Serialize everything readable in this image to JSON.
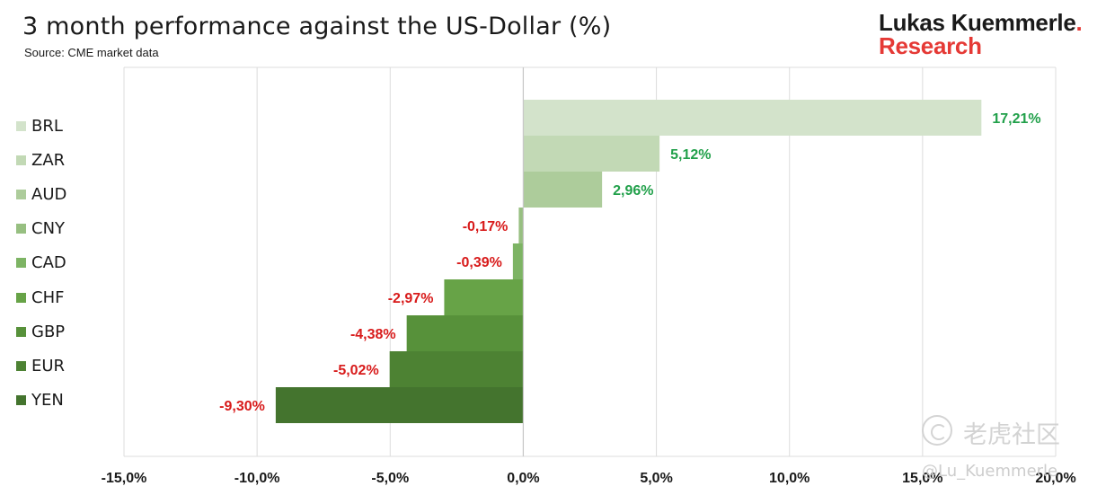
{
  "title": "3 month performance against the US-Dollar (%)",
  "subtitle": "Source: CME market data",
  "brand": {
    "line1": "Lukas Kuemmerle",
    "dot": ".",
    "line2": "Research",
    "accent_color": "#e53935"
  },
  "watermark": {
    "site": "老虎社区",
    "handle": "@Lu_Kuemmerle"
  },
  "colors": {
    "positive_label": "#21a04a",
    "negative_label": "#d81b1b",
    "grid": "#dcdcdc"
  },
  "chart_data": {
    "type": "bar",
    "orientation": "horizontal",
    "title": "3 month performance against the US-Dollar (%)",
    "categories": [
      "BRL",
      "ZAR",
      "AUD",
      "CNY",
      "CAD",
      "CHF",
      "GBP",
      "EUR",
      "YEN"
    ],
    "values": [
      17.21,
      5.12,
      2.96,
      -0.17,
      -0.39,
      -2.97,
      -4.38,
      -5.02,
      -9.3
    ],
    "value_labels": [
      "17,21%",
      "5,12%",
      "2,96%",
      "-0,17%",
      "-0,39%",
      "-2,97%",
      "-4,38%",
      "-5,02%",
      "-9,30%"
    ],
    "bar_colors": [
      "#d3e3cb",
      "#c2d9b5",
      "#adcc9b",
      "#97bf81",
      "#7db464",
      "#67a347",
      "#57913a",
      "#4d8233",
      "#44742e"
    ],
    "xlim": [
      -15,
      20
    ],
    "xticks": [
      -15,
      -10,
      -5,
      0,
      5,
      10,
      15,
      20
    ],
    "xtick_labels": [
      "-15,0%",
      "-10,0%",
      "-5,0%",
      "0,0%",
      "5,0%",
      "10,0%",
      "15,0%",
      "20,0%"
    ],
    "grid": true,
    "legend": "left"
  }
}
